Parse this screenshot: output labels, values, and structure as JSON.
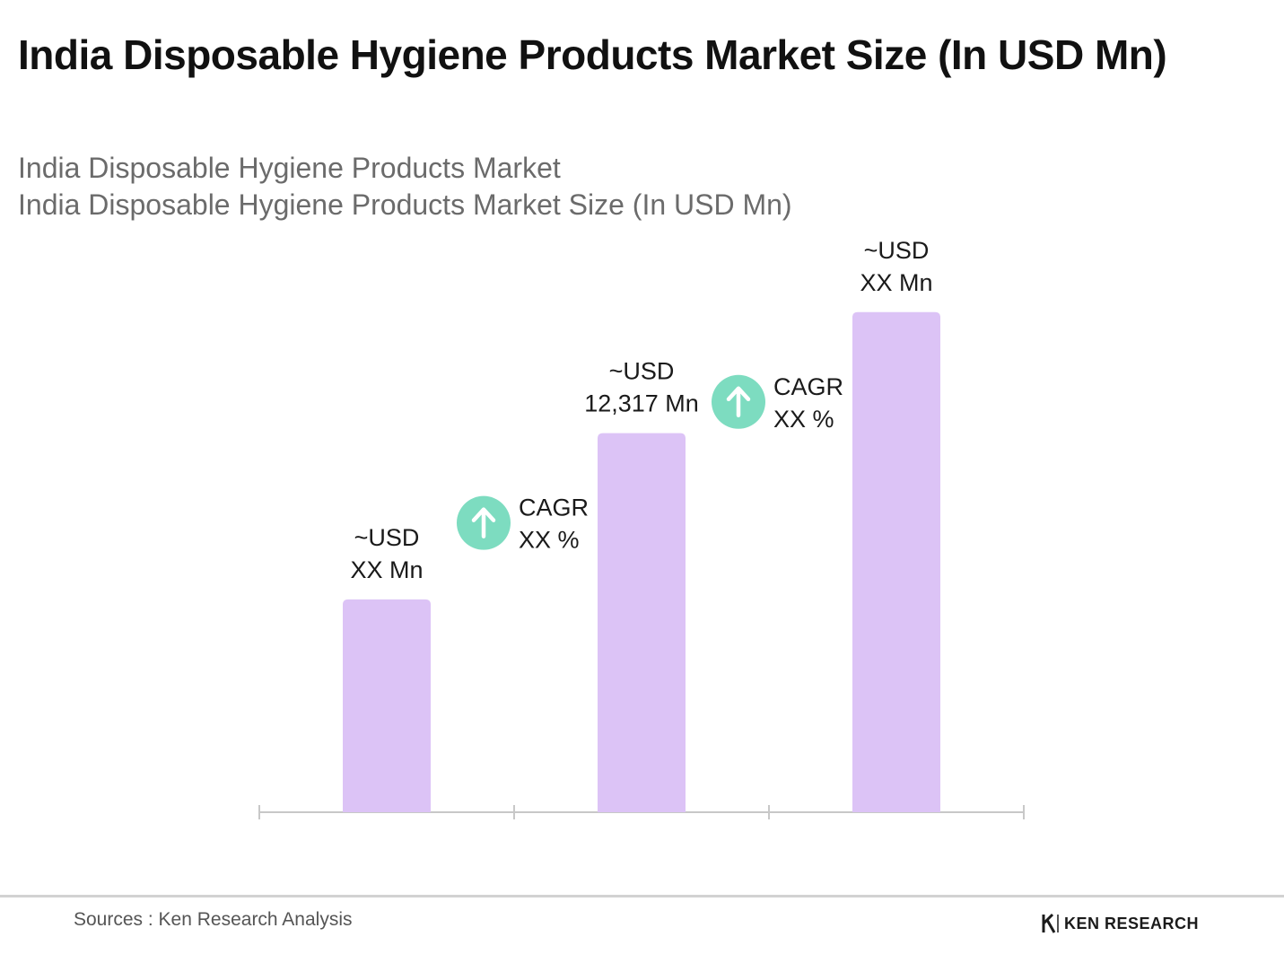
{
  "page": {
    "title": "India Disposable Hygiene Products Market Size (In USD Mn)",
    "subtitle_line1": "India Disposable Hygiene Products Market",
    "subtitle_line2": "India Disposable Hygiene Products Market Size (In USD Mn)"
  },
  "chart_data": {
    "type": "bar",
    "title": "India Disposable Hygiene Products Market Size (In USD Mn)",
    "categories": [
      "",
      "",
      ""
    ],
    "values": [
      5.08,
      9.05,
      11.94
    ],
    "value_scale_note": "Bar heights estimated relative to labeled middle bar",
    "data_labels": [
      [
        "~USD",
        "XX Mn"
      ],
      [
        "~USD",
        "12,317 Mn"
      ],
      [
        "~USD",
        "XX Mn"
      ]
    ],
    "cagr_annotations": [
      {
        "label": "CAGR",
        "value": "XX %"
      },
      {
        "label": "CAGR",
        "value": "XX %"
      }
    ],
    "grid": false,
    "legend": "none",
    "colors": {
      "bar": "#dcc3f6",
      "axis": "#c8c8c8",
      "cagr_icon": "#7ddcc0",
      "label_text": "#1a1a1a"
    }
  },
  "footer": {
    "source": "Sources : Ken Research Analysis",
    "brand": "KEN RESEARCH",
    "brand_icon": "ken-research-logo-icon"
  }
}
